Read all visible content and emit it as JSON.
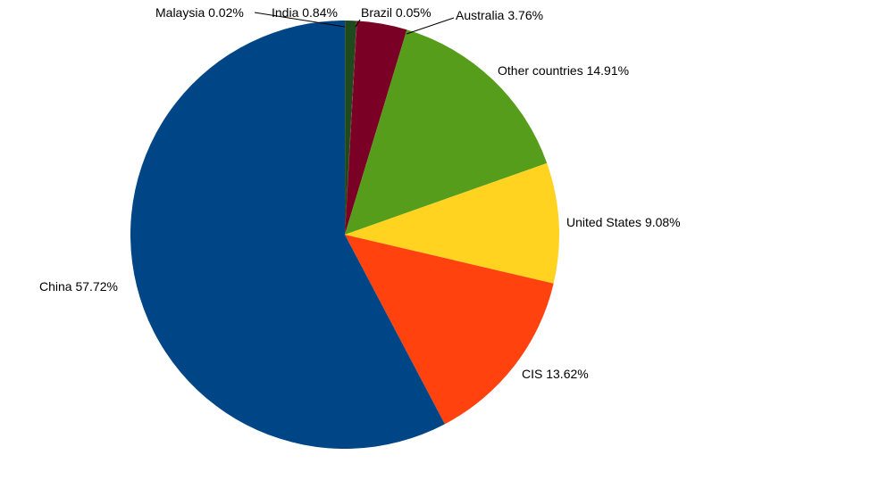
{
  "chart_data": {
    "type": "pie",
    "title": "",
    "slices": [
      {
        "label": "Malaysia 0.02%",
        "value": 0.02,
        "color": "#1a3a1a"
      },
      {
        "label": "India 0.84%",
        "value": 0.84,
        "color": "#1e4a1e"
      },
      {
        "label": "Brazil 0.05%",
        "value": 0.05,
        "color": "#7a1a2a"
      },
      {
        "label": "Australia 3.76%",
        "value": 3.76,
        "color": "#7b0026"
      },
      {
        "label": "Other countries 14.91%",
        "value": 14.91,
        "color": "#579d1c"
      },
      {
        "label": "United States 9.08%",
        "value": 9.08,
        "color": "#ffd320"
      },
      {
        "label": "CIS 13.62%",
        "value": 13.62,
        "color": "#ff420e"
      },
      {
        "label": "China 57.72%",
        "value": 57.72,
        "color": "#004586"
      }
    ],
    "start_angle": "12 o'clock",
    "direction": "clockwise",
    "legend": "none"
  }
}
